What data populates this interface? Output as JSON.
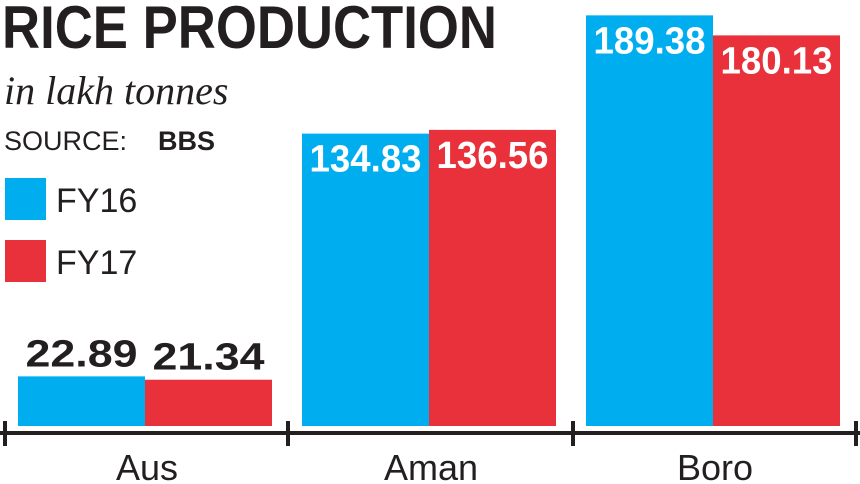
{
  "chart_data": {
    "type": "bar",
    "title": "RICE PRODUCTION",
    "subtitle": "in lakh tonnes",
    "source_label": "SOURCE:",
    "source": "BBS",
    "categories": [
      "Aus",
      "Aman",
      "Boro"
    ],
    "series": [
      {
        "name": "FY16",
        "color": "#00aeef",
        "values": [
          22.89,
          134.83,
          189.38
        ]
      },
      {
        "name": "FY17",
        "color": "#e8313a",
        "values": [
          21.34,
          136.56,
          180.13
        ]
      }
    ],
    "ylim": [
      0,
      190
    ]
  }
}
